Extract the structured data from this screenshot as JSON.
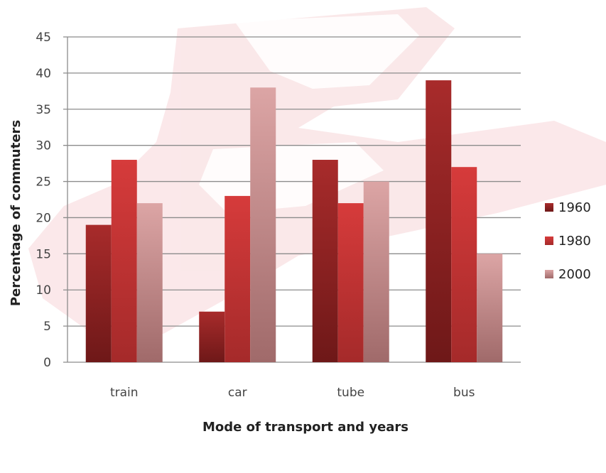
{
  "chart_data": {
    "type": "bar",
    "categories": [
      "train",
      "car",
      "tube",
      "bus"
    ],
    "series": [
      {
        "name": "1960",
        "values": [
          19,
          7,
          28,
          39
        ],
        "color": "#9c2626"
      },
      {
        "name": "1980",
        "values": [
          28,
          23,
          22,
          27
        ],
        "color": "#cc3434"
      },
      {
        "name": "2000",
        "values": [
          22,
          38,
          25,
          15
        ],
        "color": "#d99a9a"
      }
    ],
    "title": "",
    "xlabel": "Mode of transport and years",
    "ylabel": "Percentage of commuters",
    "ylim": [
      0,
      45
    ],
    "yticks": [
      0,
      5,
      10,
      15,
      20,
      25,
      30,
      35,
      40,
      45
    ],
    "grid": true,
    "legend": "right"
  },
  "colors": {
    "gridline": "#8c8c8c",
    "watermark": "#f6d4d6",
    "background": "#ffffff"
  }
}
